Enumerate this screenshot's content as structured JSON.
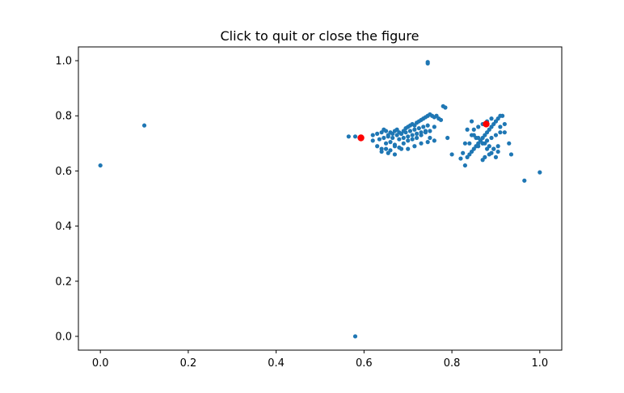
{
  "chart_data": {
    "type": "scatter",
    "title": "Click to quit or close the figure",
    "xlabel": "",
    "ylabel": "",
    "xlim": [
      -0.05,
      1.05
    ],
    "ylim": [
      -0.05,
      1.05
    ],
    "xticks": [
      "0.0",
      "0.2",
      "0.4",
      "0.6",
      "0.8",
      "1.0"
    ],
    "yticks": [
      "0.0",
      "0.2",
      "0.4",
      "0.6",
      "0.8",
      "1.0"
    ],
    "grid": false,
    "legend": "none",
    "series": [
      {
        "color": "#1f77b4",
        "marker": "circle",
        "x": [
          0.0,
          0.1,
          0.58,
          0.745,
          0.745,
          0.965,
          1.0,
          0.565,
          0.58,
          0.59,
          0.62,
          0.63,
          0.64,
          0.645,
          0.65,
          0.655,
          0.66,
          0.665,
          0.67,
          0.675,
          0.68,
          0.685,
          0.69,
          0.695,
          0.7,
          0.705,
          0.71,
          0.715,
          0.72,
          0.725,
          0.73,
          0.735,
          0.74,
          0.745,
          0.75,
          0.755,
          0.76,
          0.765,
          0.77,
          0.775,
          0.78,
          0.785,
          0.62,
          0.635,
          0.645,
          0.655,
          0.665,
          0.675,
          0.685,
          0.695,
          0.705,
          0.715,
          0.725,
          0.735,
          0.745,
          0.63,
          0.64,
          0.65,
          0.66,
          0.67,
          0.68,
          0.69,
          0.7,
          0.71,
          0.72,
          0.73,
          0.74,
          0.65,
          0.66,
          0.67,
          0.68,
          0.69,
          0.7,
          0.71,
          0.72,
          0.73,
          0.74,
          0.75,
          0.76,
          0.64,
          0.655,
          0.67,
          0.685,
          0.7,
          0.715,
          0.73,
          0.745,
          0.76,
          0.75,
          0.79,
          0.8,
          0.82,
          0.825,
          0.83,
          0.835,
          0.84,
          0.845,
          0.85,
          0.855,
          0.86,
          0.865,
          0.87,
          0.875,
          0.88,
          0.885,
          0.89,
          0.895,
          0.9,
          0.905,
          0.91,
          0.915,
          0.92,
          0.93,
          0.935,
          0.84,
          0.85,
          0.86,
          0.87,
          0.88,
          0.89,
          0.9,
          0.91,
          0.92,
          0.845,
          0.855,
          0.865,
          0.875,
          0.885,
          0.895,
          0.905,
          0.85,
          0.86,
          0.87,
          0.88,
          0.89,
          0.9,
          0.86,
          0.87,
          0.88,
          0.89,
          0.9,
          0.91,
          0.83,
          0.835,
          0.845,
          0.87,
          0.875,
          0.885,
          0.895,
          0.905
        ],
        "y": [
          0.62,
          0.765,
          0.0,
          0.995,
          0.99,
          0.565,
          0.595,
          0.725,
          0.725,
          0.72,
          0.73,
          0.735,
          0.74,
          0.75,
          0.745,
          0.73,
          0.74,
          0.735,
          0.745,
          0.75,
          0.74,
          0.735,
          0.745,
          0.755,
          0.76,
          0.765,
          0.77,
          0.765,
          0.775,
          0.78,
          0.785,
          0.79,
          0.795,
          0.8,
          0.805,
          0.8,
          0.795,
          0.8,
          0.79,
          0.785,
          0.835,
          0.83,
          0.71,
          0.715,
          0.72,
          0.725,
          0.72,
          0.73,
          0.735,
          0.74,
          0.745,
          0.75,
          0.755,
          0.76,
          0.765,
          0.69,
          0.68,
          0.7,
          0.705,
          0.695,
          0.715,
          0.72,
          0.725,
          0.73,
          0.735,
          0.74,
          0.745,
          0.68,
          0.675,
          0.69,
          0.685,
          0.7,
          0.71,
          0.715,
          0.72,
          0.73,
          0.74,
          0.745,
          0.76,
          0.67,
          0.665,
          0.66,
          0.68,
          0.68,
          0.69,
          0.7,
          0.705,
          0.71,
          0.72,
          0.72,
          0.66,
          0.645,
          0.665,
          0.62,
          0.65,
          0.66,
          0.67,
          0.68,
          0.69,
          0.7,
          0.71,
          0.72,
          0.73,
          0.74,
          0.75,
          0.76,
          0.77,
          0.78,
          0.79,
          0.8,
          0.8,
          0.77,
          0.7,
          0.66,
          0.7,
          0.75,
          0.76,
          0.77,
          0.78,
          0.79,
          0.78,
          0.76,
          0.74,
          0.73,
          0.72,
          0.71,
          0.7,
          0.69,
          0.68,
          0.67,
          0.73,
          0.72,
          0.7,
          0.68,
          0.665,
          0.65,
          0.69,
          0.7,
          0.71,
          0.72,
          0.73,
          0.74,
          0.7,
          0.75,
          0.78,
          0.64,
          0.65,
          0.66,
          0.68,
          0.69
        ]
      },
      {
        "color": "#ff0000",
        "marker": "circle",
        "x": [
          0.593,
          0.878
        ],
        "y": [
          0.72,
          0.77
        ]
      }
    ]
  }
}
